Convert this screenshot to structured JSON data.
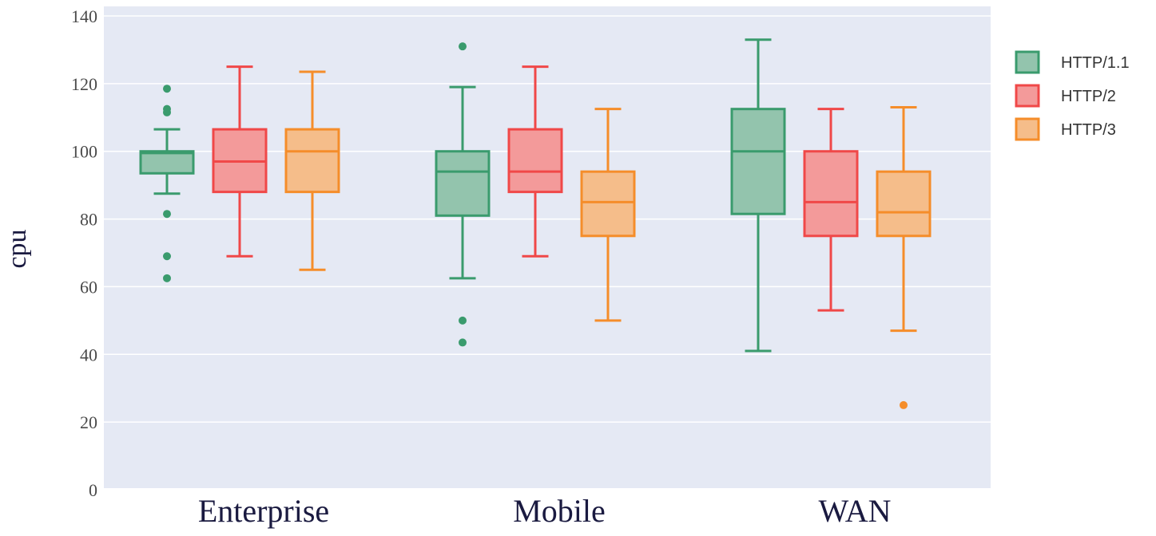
{
  "chart_data": {
    "type": "box",
    "ylabel": "cpu",
    "xlabel": "",
    "ylim": [
      0,
      140
    ],
    "yticks": [
      0,
      20,
      40,
      60,
      80,
      100,
      120,
      140
    ],
    "categories": [
      "Enterprise",
      "Mobile",
      "WAN"
    ],
    "grid": true,
    "legend_position": "top-right",
    "series": [
      {
        "name": "HTTP/1.1",
        "color": "#3a9b6d",
        "fill": "#93c4ad",
        "boxes": [
          {
            "category": "Enterprise",
            "min": 87.5,
            "q1": 93.5,
            "median": 99.5,
            "q3": 100,
            "max": 106.5,
            "outliers": [
              118.5,
              112.5,
              111.5,
              81.5,
              69,
              62.5
            ]
          },
          {
            "category": "Mobile",
            "min": 62.5,
            "q1": 81,
            "median": 94,
            "q3": 100,
            "max": 119,
            "outliers": [
              131,
              50,
              43.5
            ]
          },
          {
            "category": "WAN",
            "min": 41,
            "q1": 81.5,
            "median": 100,
            "q3": 112.5,
            "max": 133,
            "outliers": []
          }
        ]
      },
      {
        "name": "HTTP/2",
        "color": "#f04848",
        "fill": "#f39a9a",
        "boxes": [
          {
            "category": "Enterprise",
            "min": 69,
            "q1": 88,
            "median": 97,
            "q3": 106.5,
            "max": 125,
            "outliers": []
          },
          {
            "category": "Mobile",
            "min": 69,
            "q1": 88,
            "median": 94,
            "q3": 106.5,
            "max": 125,
            "outliers": []
          },
          {
            "category": "WAN",
            "min": 53,
            "q1": 75,
            "median": 85,
            "q3": 100,
            "max": 112.5,
            "outliers": []
          }
        ]
      },
      {
        "name": "HTTP/3",
        "color": "#f58d2a",
        "fill": "#f5bd8a",
        "boxes": [
          {
            "category": "Enterprise",
            "min": 65,
            "q1": 88,
            "median": 100,
            "q3": 106.5,
            "max": 123.5,
            "outliers": []
          },
          {
            "category": "Mobile",
            "min": 50,
            "q1": 75,
            "median": 85,
            "q3": 94,
            "max": 112.5,
            "outliers": []
          },
          {
            "category": "WAN",
            "min": 47,
            "q1": 75,
            "median": 82,
            "q3": 94,
            "max": 113,
            "outliers": [
              25
            ]
          }
        ]
      }
    ],
    "colors": {
      "plot_background": "#e5e9f4",
      "grid": "#ffffff"
    }
  }
}
